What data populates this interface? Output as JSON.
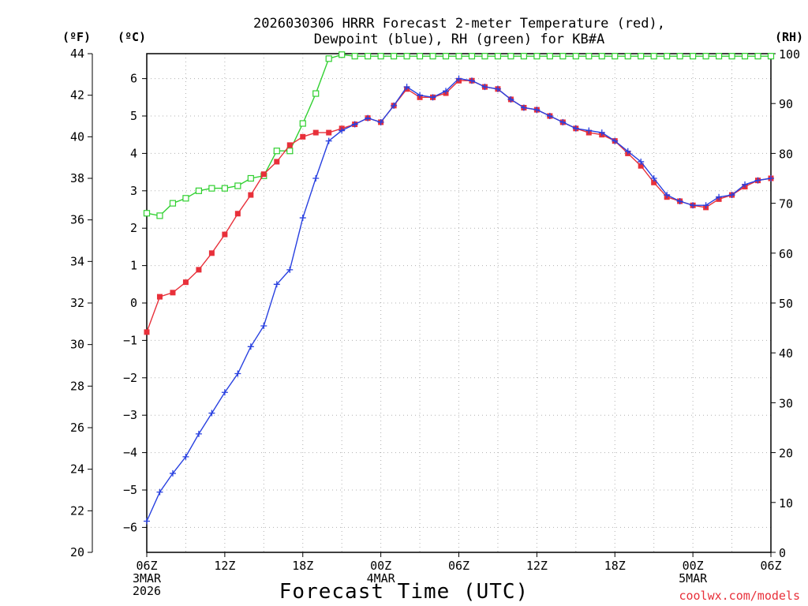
{
  "chart_data": {
    "type": "line",
    "title_line1": "2026030306 HRRR Forecast 2-meter Temperature (red),",
    "title_line2": "Dewpoint (blue), RH (green) for KB#A",
    "xlabel": "Forecast Time (UTC)",
    "credit": "coolwx.com/models",
    "units": {
      "fahrenheit": "(ºF)",
      "celsius": "(ºC)",
      "rh": "(RH)"
    },
    "x_range_hours": [
      0,
      48
    ],
    "y_celsius_range": [
      -6.667,
      6.667
    ],
    "y_fahrenheit_ticks": [
      20,
      22,
      24,
      26,
      28,
      30,
      32,
      34,
      36,
      38,
      40,
      42,
      44
    ],
    "y_celsius_ticks": [
      -6,
      -5,
      -4,
      -3,
      -2,
      -1,
      0,
      1,
      2,
      3,
      4,
      5,
      6
    ],
    "y_rh_range": [
      0,
      100
    ],
    "y_rh_ticks": [
      0,
      10,
      20,
      30,
      40,
      50,
      60,
      70,
      80,
      90,
      100
    ],
    "x_ticks": [
      {
        "hour": 0,
        "lines": [
          "06Z",
          "3MAR",
          "2026"
        ]
      },
      {
        "hour": 6,
        "lines": [
          "12Z"
        ]
      },
      {
        "hour": 12,
        "lines": [
          "18Z"
        ]
      },
      {
        "hour": 18,
        "lines": [
          "00Z",
          "4MAR"
        ]
      },
      {
        "hour": 24,
        "lines": [
          "06Z"
        ]
      },
      {
        "hour": 30,
        "lines": [
          "12Z"
        ]
      },
      {
        "hour": 36,
        "lines": [
          "18Z"
        ]
      },
      {
        "hour": 42,
        "lines": [
          "00Z",
          "5MAR"
        ]
      },
      {
        "hour": 48,
        "lines": [
          "06Z"
        ]
      }
    ],
    "grid": true,
    "series": [
      {
        "name": "Temperature",
        "unit": "F",
        "color": "#e8303a",
        "marker": "filled-square",
        "values": [
          30.6,
          32.3,
          32.5,
          33.0,
          33.6,
          34.4,
          35.3,
          36.3,
          37.2,
          38.2,
          38.8,
          39.6,
          40.0,
          40.2,
          40.2,
          40.4,
          40.6,
          40.9,
          40.7,
          41.5,
          42.3,
          41.9,
          41.9,
          42.1,
          42.7,
          42.7,
          42.4,
          42.3,
          41.8,
          41.4,
          41.3,
          41.0,
          40.7,
          40.4,
          40.2,
          40.1,
          39.8,
          39.2,
          38.6,
          37.8,
          37.1,
          36.9,
          36.7,
          36.6,
          37.0,
          37.2,
          37.6,
          37.9,
          38.0
        ]
      },
      {
        "name": "Dewpoint",
        "unit": "F",
        "color": "#2840e0",
        "marker": "plus",
        "values": [
          21.5,
          22.9,
          23.8,
          24.6,
          25.7,
          26.7,
          27.7,
          28.6,
          29.9,
          30.9,
          32.9,
          33.6,
          36.1,
          38.0,
          39.8,
          40.3,
          40.6,
          40.9,
          40.7,
          41.5,
          42.4,
          42.0,
          41.9,
          42.2,
          42.8,
          42.7,
          42.4,
          42.3,
          41.8,
          41.4,
          41.3,
          41.0,
          40.7,
          40.4,
          40.3,
          40.2,
          39.8,
          39.3,
          38.8,
          38.0,
          37.2,
          36.9,
          36.7,
          36.7,
          37.1,
          37.2,
          37.7,
          37.9,
          38.0
        ]
      },
      {
        "name": "RH",
        "unit": "%",
        "color": "#30d030",
        "marker": "open-square",
        "values": [
          68,
          67.5,
          70,
          71,
          72.5,
          73,
          73,
          73.5,
          75,
          75.5,
          80.5,
          80.5,
          86,
          92,
          99,
          99.8,
          99.5,
          99.5,
          99.5,
          99.5,
          99.5,
          99.5,
          99.5,
          99.5,
          99.5,
          99.5,
          99.5,
          99.5,
          99.5,
          99.5,
          99.5,
          99.5,
          99.5,
          99.5,
          99.5,
          99.5,
          99.5,
          99.5,
          99.5,
          99.5,
          99.5,
          99.5,
          99.5,
          99.5,
          99.5,
          99.5,
          99.5,
          99.5,
          99.5
        ]
      }
    ]
  }
}
